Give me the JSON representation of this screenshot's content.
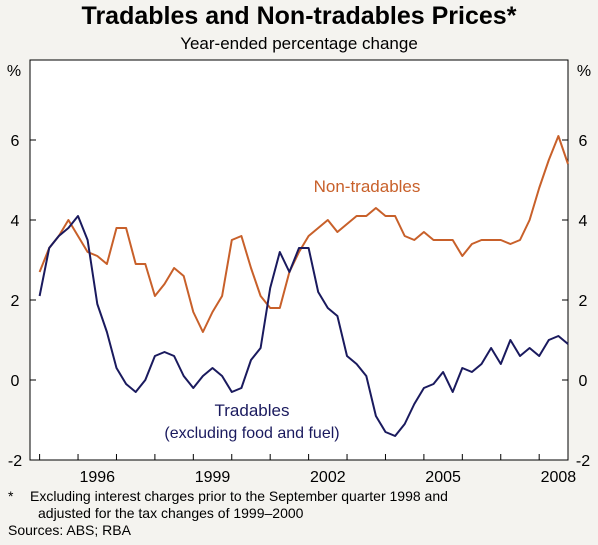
{
  "chart_data": {
    "type": "line",
    "title": "Tradables and Non-tradables Prices*",
    "subtitle": "Year-ended percentage change",
    "left_unit": "%",
    "right_unit": "%",
    "ylim": [
      -2,
      8
    ],
    "y_ticks": [
      -2,
      0,
      2,
      4,
      6
    ],
    "xlim": [
      1994.75,
      2008.75
    ],
    "x_ticks": [
      1996,
      1999,
      2002,
      2005,
      2008
    ],
    "grid": false,
    "x_start": 1995.0,
    "x_step": 0.25,
    "series": [
      {
        "name": "Non-tradables",
        "label_line1": "Non-tradables",
        "color": "#c8602a",
        "values": [
          2.7,
          3.3,
          3.6,
          4.0,
          3.6,
          3.2,
          3.1,
          2.9,
          3.8,
          3.8,
          2.9,
          2.9,
          2.1,
          2.4,
          2.8,
          2.6,
          1.7,
          1.2,
          1.7,
          2.1,
          3.5,
          3.6,
          2.8,
          2.1,
          1.8,
          1.8,
          2.7,
          3.2,
          3.6,
          3.8,
          4.0,
          3.7,
          3.9,
          4.1,
          4.1,
          4.3,
          4.1,
          4.1,
          3.6,
          3.5,
          3.7,
          3.5,
          3.5,
          3.5,
          3.1,
          3.4,
          3.5,
          3.5,
          3.5,
          3.4,
          3.5,
          4.0,
          4.8,
          5.5,
          6.1,
          5.4
        ]
      },
      {
        "name": "Tradables",
        "label_line1": "Tradables",
        "label_line2": "(excluding food and fuel)",
        "color": "#1a1a5e",
        "values": [
          2.1,
          3.3,
          3.6,
          3.8,
          4.1,
          3.5,
          1.9,
          1.2,
          0.3,
          -0.1,
          -0.3,
          0.0,
          0.6,
          0.7,
          0.6,
          0.1,
          -0.2,
          0.1,
          0.3,
          0.1,
          -0.3,
          -0.2,
          0.5,
          0.8,
          2.3,
          3.2,
          2.7,
          3.3,
          3.3,
          2.2,
          1.8,
          1.6,
          0.6,
          0.4,
          0.1,
          -0.9,
          -1.3,
          -1.4,
          -1.1,
          -0.6,
          -0.2,
          -0.1,
          0.2,
          -0.3,
          0.3,
          0.2,
          0.4,
          0.8,
          0.4,
          1.0,
          0.6,
          0.8,
          0.6,
          1.0,
          1.1,
          0.9
        ]
      }
    ]
  },
  "footnote": {
    "marker": "*",
    "line1": "Excluding interest charges prior to the September quarter 1998 and",
    "line2": "adjusted for the tax changes of 1999–2000",
    "sources": "Sources: ABS; RBA"
  }
}
